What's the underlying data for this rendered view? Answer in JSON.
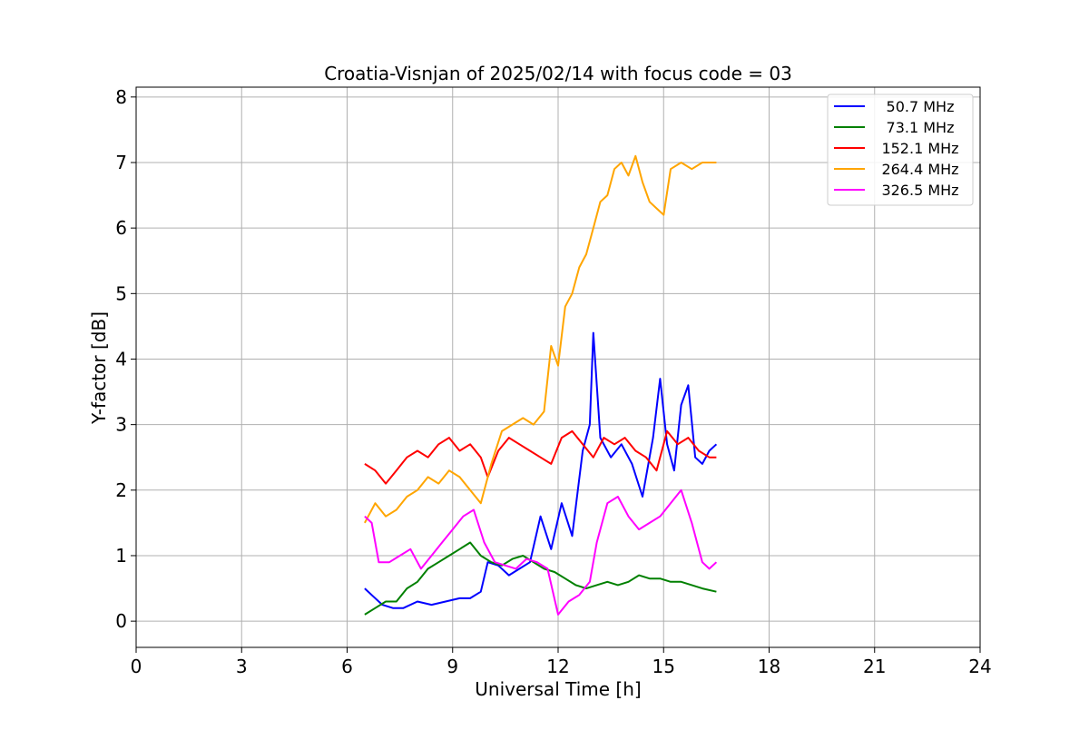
{
  "chart_data": {
    "type": "line",
    "title": "Croatia-Visnjan of 2025/02/14 with focus code = 03",
    "xlabel": "Universal Time [h]",
    "ylabel": "Y-factor [dB]",
    "xlim": [
      0,
      24
    ],
    "ylim": [
      -0.4,
      8.15
    ],
    "x_ticks": [
      0,
      3,
      6,
      9,
      12,
      15,
      18,
      21,
      24
    ],
    "y_ticks": [
      0,
      1,
      2,
      3,
      4,
      5,
      6,
      7,
      8
    ],
    "grid": true,
    "legend_position": "top-right",
    "series": [
      {
        "name": " 50.7 MHz",
        "color": "#0000ff",
        "x": [
          6.5,
          6.7,
          7.0,
          7.3,
          7.6,
          8.0,
          8.4,
          8.8,
          9.2,
          9.5,
          9.8,
          10.0,
          10.3,
          10.6,
          10.9,
          11.2,
          11.5,
          11.8,
          12.1,
          12.4,
          12.7,
          12.9,
          13.0,
          13.2,
          13.5,
          13.8,
          14.1,
          14.4,
          14.7,
          14.9,
          15.1,
          15.3,
          15.5,
          15.7,
          15.9,
          16.1,
          16.3,
          16.5
        ],
        "y": [
          0.5,
          0.4,
          0.25,
          0.2,
          0.2,
          0.3,
          0.25,
          0.3,
          0.35,
          0.35,
          0.45,
          0.9,
          0.85,
          0.7,
          0.8,
          0.9,
          1.6,
          1.1,
          1.8,
          1.3,
          2.6,
          3.0,
          4.4,
          2.8,
          2.5,
          2.7,
          2.4,
          1.9,
          2.8,
          3.7,
          2.7,
          2.3,
          3.3,
          3.6,
          2.5,
          2.4,
          2.6,
          2.7
        ]
      },
      {
        "name": " 73.1 MHz",
        "color": "#008000",
        "x": [
          6.5,
          6.8,
          7.1,
          7.4,
          7.7,
          8.0,
          8.3,
          8.6,
          8.9,
          9.2,
          9.5,
          9.8,
          10.1,
          10.4,
          10.7,
          11.0,
          11.3,
          11.6,
          11.9,
          12.2,
          12.5,
          12.8,
          13.1,
          13.4,
          13.7,
          14.0,
          14.3,
          14.6,
          14.9,
          15.2,
          15.5,
          15.8,
          16.1,
          16.5
        ],
        "y": [
          0.1,
          0.2,
          0.3,
          0.3,
          0.5,
          0.6,
          0.8,
          0.9,
          1.0,
          1.1,
          1.2,
          1.0,
          0.9,
          0.85,
          0.95,
          1.0,
          0.9,
          0.8,
          0.75,
          0.65,
          0.55,
          0.5,
          0.55,
          0.6,
          0.55,
          0.6,
          0.7,
          0.65,
          0.65,
          0.6,
          0.6,
          0.55,
          0.5,
          0.45
        ]
      },
      {
        "name": "152.1 MHz",
        "color": "#ff0000",
        "x": [
          6.5,
          6.8,
          7.1,
          7.4,
          7.7,
          8.0,
          8.3,
          8.6,
          8.9,
          9.2,
          9.5,
          9.8,
          10.0,
          10.3,
          10.6,
          10.9,
          11.2,
          11.5,
          11.8,
          12.1,
          12.4,
          12.7,
          13.0,
          13.3,
          13.6,
          13.9,
          14.2,
          14.5,
          14.8,
          15.1,
          15.4,
          15.7,
          16.0,
          16.3,
          16.5
        ],
        "y": [
          2.4,
          2.3,
          2.1,
          2.3,
          2.5,
          2.6,
          2.5,
          2.7,
          2.8,
          2.6,
          2.7,
          2.5,
          2.2,
          2.6,
          2.8,
          2.7,
          2.6,
          2.5,
          2.4,
          2.8,
          2.9,
          2.7,
          2.5,
          2.8,
          2.7,
          2.8,
          2.6,
          2.5,
          2.3,
          2.9,
          2.7,
          2.8,
          2.6,
          2.5,
          2.5
        ]
      },
      {
        "name": "264.4 MHz",
        "color": "#ffa500",
        "x": [
          6.5,
          6.8,
          7.1,
          7.4,
          7.7,
          8.0,
          8.3,
          8.6,
          8.9,
          9.2,
          9.5,
          9.8,
          10.1,
          10.4,
          10.7,
          11.0,
          11.3,
          11.6,
          11.8,
          12.0,
          12.2,
          12.4,
          12.6,
          12.8,
          13.0,
          13.2,
          13.4,
          13.6,
          13.8,
          14.0,
          14.2,
          14.4,
          14.6,
          14.8,
          15.0,
          15.2,
          15.5,
          15.8,
          16.1,
          16.5
        ],
        "y": [
          1.5,
          1.8,
          1.6,
          1.7,
          1.9,
          2.0,
          2.2,
          2.1,
          2.3,
          2.2,
          2.0,
          1.8,
          2.4,
          2.9,
          3.0,
          3.1,
          3.0,
          3.2,
          4.2,
          3.9,
          4.8,
          5.0,
          5.4,
          5.6,
          6.0,
          6.4,
          6.5,
          6.9,
          7.0,
          6.8,
          7.1,
          6.7,
          6.4,
          6.3,
          6.2,
          6.9,
          7.0,
          6.9,
          7.0,
          7.0
        ]
      },
      {
        "name": "326.5 MHz",
        "color": "#ff00ff",
        "x": [
          6.5,
          6.7,
          6.9,
          7.2,
          7.5,
          7.8,
          8.1,
          8.4,
          8.7,
          9.0,
          9.3,
          9.6,
          9.9,
          10.2,
          10.5,
          10.8,
          11.1,
          11.4,
          11.7,
          12.0,
          12.3,
          12.6,
          12.9,
          13.1,
          13.4,
          13.7,
          14.0,
          14.3,
          14.6,
          14.9,
          15.2,
          15.5,
          15.8,
          16.1,
          16.3,
          16.5
        ],
        "y": [
          1.6,
          1.5,
          0.9,
          0.9,
          1.0,
          1.1,
          0.8,
          1.0,
          1.2,
          1.4,
          1.6,
          1.7,
          1.2,
          0.9,
          0.85,
          0.8,
          0.95,
          0.9,
          0.8,
          0.1,
          0.3,
          0.4,
          0.6,
          1.2,
          1.8,
          1.9,
          1.6,
          1.4,
          1.5,
          1.6,
          1.8,
          2.0,
          1.5,
          0.9,
          0.8,
          0.9
        ]
      }
    ]
  }
}
